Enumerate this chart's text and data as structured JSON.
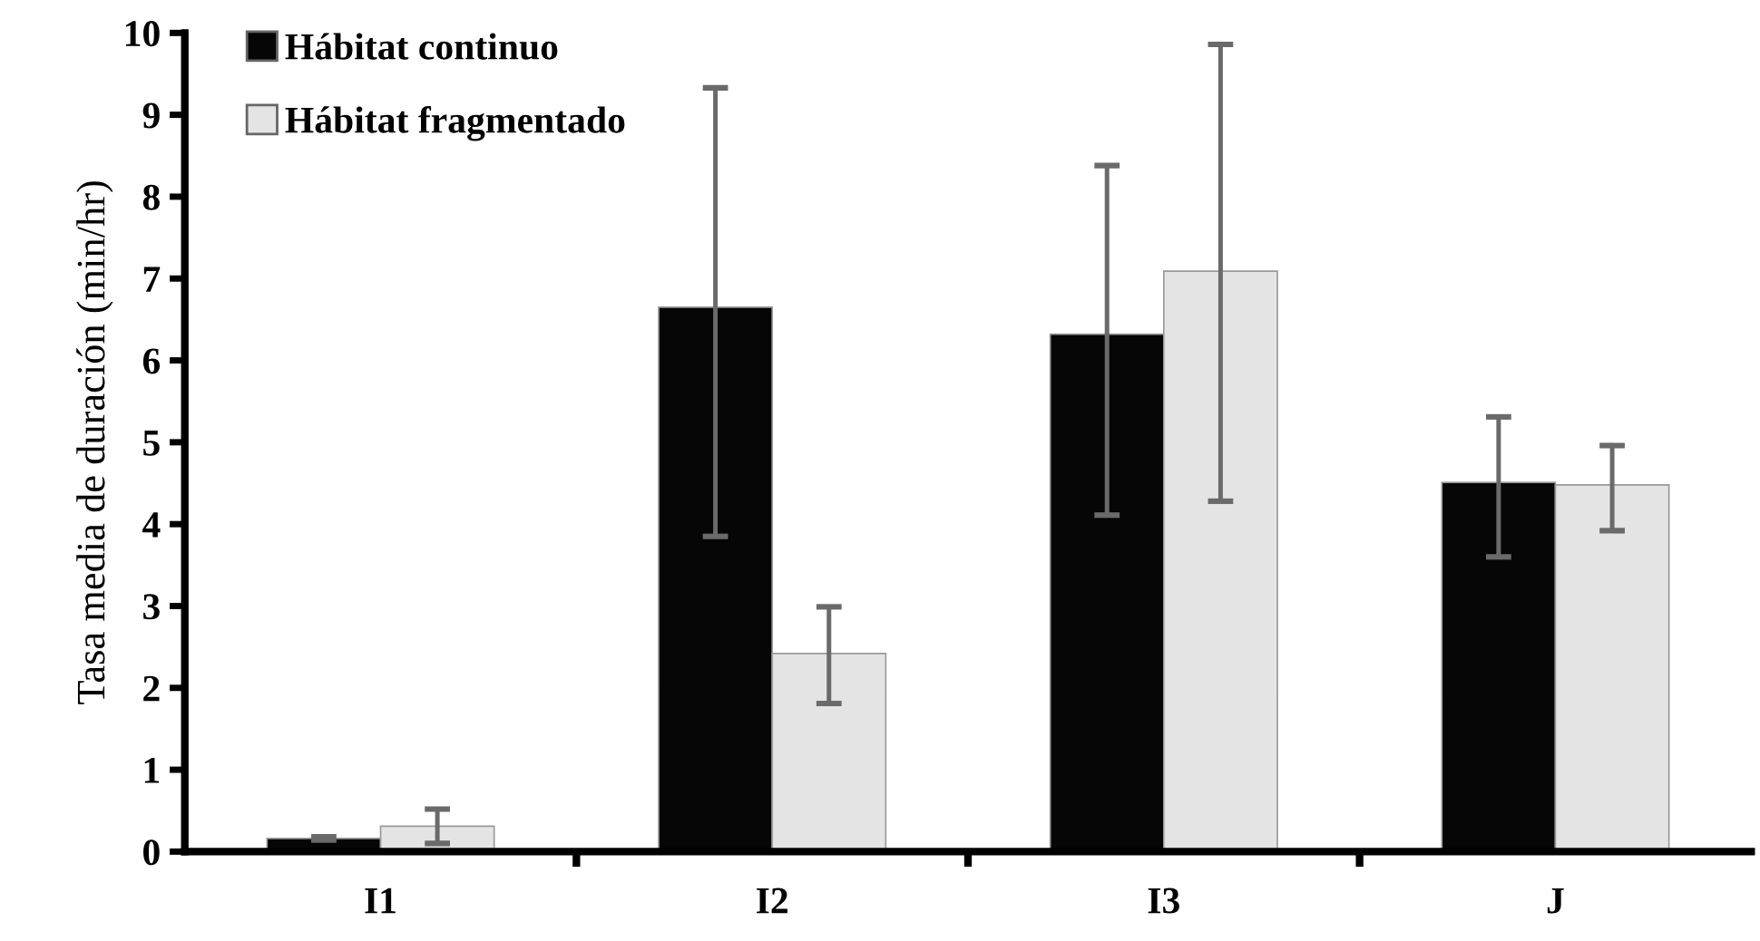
{
  "chart_data": {
    "type": "bar",
    "ylabel": "Tasa media de duración (min/hr)",
    "categories": [
      "I1",
      "I2",
      "I3",
      "J"
    ],
    "series": [
      {
        "name": "Hábitat continuo",
        "color": "#060606",
        "values": [
          0.16,
          6.65,
          6.32,
          4.51
        ],
        "errors": [
          [
            0.14,
            0.18
          ],
          [
            3.85,
            9.33
          ],
          [
            4.11,
            8.38
          ],
          [
            3.6,
            5.31
          ]
        ]
      },
      {
        "name": "Hábitat fragmentado",
        "color": "#e4e4e4",
        "values": [
          0.31,
          2.42,
          7.09,
          4.48
        ],
        "errors": [
          [
            0.1,
            0.52
          ],
          [
            1.81,
            2.99
          ],
          [
            4.28,
            9.86
          ],
          [
            3.92,
            4.96
          ]
        ]
      }
    ],
    "ylim": [
      0,
      10
    ],
    "yticks": [
      0,
      1,
      2,
      3,
      4,
      5,
      6,
      7,
      8,
      9,
      10
    ],
    "grid": false,
    "legend": "top left"
  }
}
